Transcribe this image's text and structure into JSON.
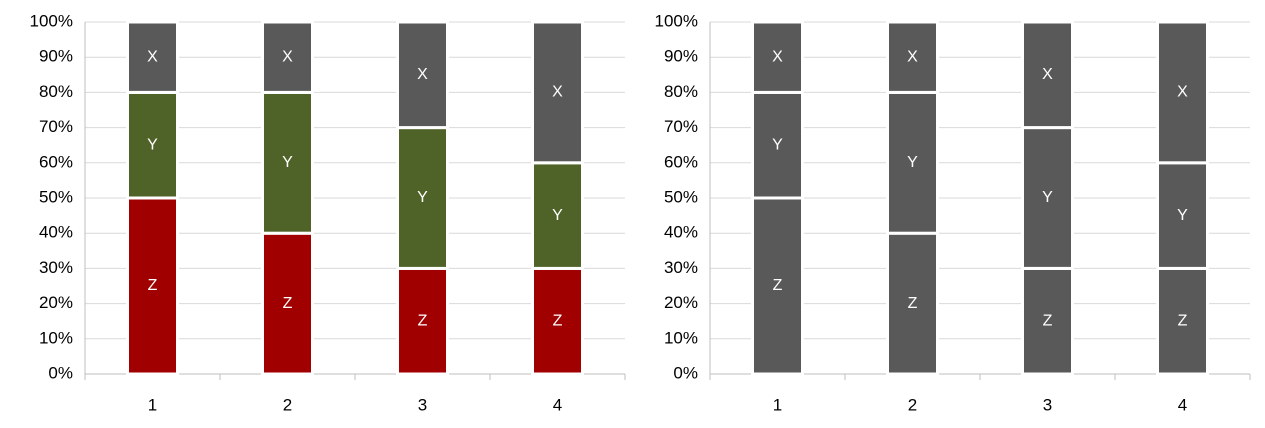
{
  "chart_data": [
    {
      "type": "bar",
      "stacked": true,
      "grid": true,
      "categories": [
        "1",
        "2",
        "3",
        "4"
      ],
      "series": [
        {
          "name": "Z",
          "color": "#a00000",
          "values": [
            50,
            40,
            30,
            30
          ]
        },
        {
          "name": "Y",
          "color": "#4f6228",
          "values": [
            30,
            40,
            40,
            30
          ]
        },
        {
          "name": "X",
          "color": "#595959",
          "values": [
            20,
            20,
            30,
            40
          ]
        }
      ],
      "ylim": [
        0,
        100
      ],
      "yticks": [
        {
          "value": 0,
          "label": "0%"
        },
        {
          "value": 10,
          "label": "10%"
        },
        {
          "value": 20,
          "label": "20%"
        },
        {
          "value": 30,
          "label": "30%"
        },
        {
          "value": 40,
          "label": "40%"
        },
        {
          "value": 50,
          "label": "50%"
        },
        {
          "value": 60,
          "label": "60%"
        },
        {
          "value": 70,
          "label": "70%"
        },
        {
          "value": 80,
          "label": "80%"
        },
        {
          "value": 90,
          "label": "90%"
        },
        {
          "value": 100,
          "label": "100%"
        }
      ]
    },
    {
      "type": "bar",
      "stacked": true,
      "grid": true,
      "categories": [
        "1",
        "2",
        "3",
        "4"
      ],
      "series": [
        {
          "name": "Z",
          "color": "#595959",
          "values": [
            50,
            40,
            30,
            30
          ]
        },
        {
          "name": "Y",
          "color": "#595959",
          "values": [
            30,
            40,
            40,
            30
          ]
        },
        {
          "name": "X",
          "color": "#595959",
          "values": [
            20,
            20,
            30,
            40
          ]
        }
      ],
      "ylim": [
        0,
        100
      ],
      "yticks": [
        {
          "value": 0,
          "label": "0%"
        },
        {
          "value": 10,
          "label": "10%"
        },
        {
          "value": 20,
          "label": "20%"
        },
        {
          "value": 30,
          "label": "30%"
        },
        {
          "value": 40,
          "label": "40%"
        },
        {
          "value": 50,
          "label": "50%"
        },
        {
          "value": 60,
          "label": "60%"
        },
        {
          "value": 70,
          "label": "70%"
        },
        {
          "value": 80,
          "label": "80%"
        },
        {
          "value": 90,
          "label": "90%"
        },
        {
          "value": 100,
          "label": "100%"
        }
      ]
    }
  ]
}
